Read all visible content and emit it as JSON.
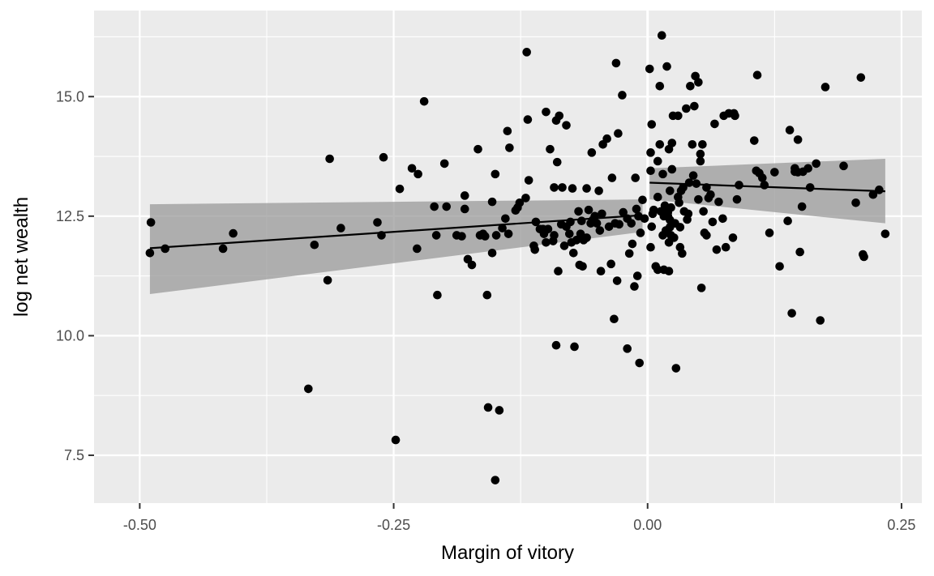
{
  "chart_data": {
    "type": "scatter",
    "title": "",
    "xlabel": "Margin of vitory",
    "ylabel": "log net wealth",
    "xlim": [
      -0.545,
      0.27
    ],
    "ylim": [
      6.5,
      16.8
    ],
    "x_ticks": [
      -0.5,
      -0.25,
      0,
      0.25
    ],
    "x_tick_labels": [
      "-0.50",
      "-0.25",
      "0.00",
      "0.25"
    ],
    "x_minor_ticks": [
      -0.375,
      -0.125,
      0.125
    ],
    "y_ticks": [
      7.5,
      10,
      12.5,
      15
    ],
    "y_tick_labels": [
      "7.5",
      "10.0",
      "12.5",
      "15.0"
    ],
    "y_minor_ticks": [
      8.75,
      11.25,
      13.75,
      16.25
    ],
    "grid": true,
    "cutoff_x": 0,
    "colors": {
      "panel": "#ebebeb",
      "grid": "#ffffff",
      "points": "#000000",
      "ribbon": "#999999",
      "fit_line": "#000000",
      "tick_label": "#4d4d4d"
    },
    "fits": [
      {
        "x": [
          -0.49,
          -0.005
        ],
        "y": [
          11.83,
          12.52
        ],
        "ribbon_lower": [
          10.87,
          12.17
        ],
        "ribbon_upper": [
          12.75,
          12.85
        ]
      },
      {
        "x": [
          0.002,
          0.234
        ],
        "y": [
          13.2,
          13.02
        ],
        "ribbon_lower": [
          12.85,
          12.35
        ],
        "ribbon_upper": [
          13.5,
          13.7
        ]
      }
    ],
    "points": [
      [
        -0.49,
        11.73
      ],
      [
        -0.489,
        12.37
      ],
      [
        -0.475,
        11.82
      ],
      [
        -0.418,
        11.82
      ],
      [
        -0.408,
        12.14
      ],
      [
        -0.334,
        8.89
      ],
      [
        -0.328,
        11.9
      ],
      [
        -0.315,
        11.16
      ],
      [
        -0.313,
        13.7
      ],
      [
        -0.302,
        12.25
      ],
      [
        -0.266,
        12.37
      ],
      [
        -0.262,
        12.1
      ],
      [
        -0.26,
        13.73
      ],
      [
        -0.248,
        7.82
      ],
      [
        -0.244,
        13.07
      ],
      [
        -0.232,
        13.5
      ],
      [
        -0.227,
        11.82
      ],
      [
        -0.226,
        13.38
      ],
      [
        -0.22,
        14.9
      ],
      [
        -0.21,
        12.7
      ],
      [
        -0.208,
        12.1
      ],
      [
        -0.207,
        10.85
      ],
      [
        -0.2,
        13.6
      ],
      [
        -0.198,
        12.7
      ],
      [
        -0.188,
        12.1
      ],
      [
        -0.183,
        12.08
      ],
      [
        -0.18,
        12.65
      ],
      [
        -0.18,
        12.93
      ],
      [
        -0.177,
        11.6
      ],
      [
        -0.173,
        11.48
      ],
      [
        -0.167,
        13.9
      ],
      [
        -0.165,
        12.1
      ],
      [
        -0.162,
        12.13
      ],
      [
        -0.16,
        12.08
      ],
      [
        -0.158,
        10.85
      ],
      [
        -0.157,
        8.5
      ],
      [
        -0.153,
        11.73
      ],
      [
        -0.153,
        12.8
      ],
      [
        -0.15,
        6.98
      ],
      [
        -0.15,
        13.38
      ],
      [
        -0.149,
        12.1
      ],
      [
        -0.146,
        8.44
      ],
      [
        -0.143,
        12.25
      ],
      [
        -0.14,
        12.45
      ],
      [
        -0.138,
        14.28
      ],
      [
        -0.137,
        12.13
      ],
      [
        -0.136,
        13.93
      ],
      [
        -0.13,
        12.62
      ],
      [
        -0.128,
        12.68
      ],
      [
        -0.126,
        12.78
      ],
      [
        -0.12,
        12.88
      ],
      [
        -0.119,
        15.93
      ],
      [
        -0.118,
        14.52
      ],
      [
        -0.117,
        13.25
      ],
      [
        -0.112,
        11.88
      ],
      [
        -0.111,
        11.8
      ],
      [
        -0.11,
        12.38
      ],
      [
        -0.106,
        12.23
      ],
      [
        -0.103,
        12.23
      ],
      [
        -0.102,
        12.13
      ],
      [
        -0.1,
        11.95
      ],
      [
        -0.1,
        14.68
      ],
      [
        -0.098,
        12.23
      ],
      [
        -0.096,
        13.9
      ],
      [
        -0.093,
        11.98
      ],
      [
        -0.092,
        12.1
      ],
      [
        -0.092,
        13.1
      ],
      [
        -0.09,
        14.5
      ],
      [
        -0.09,
        9.8
      ],
      [
        -0.089,
        13.63
      ],
      [
        -0.088,
        11.35
      ],
      [
        -0.087,
        14.6
      ],
      [
        -0.085,
        12.33
      ],
      [
        -0.084,
        13.1
      ],
      [
        -0.082,
        11.88
      ],
      [
        -0.08,
        12.28
      ],
      [
        -0.08,
        14.4
      ],
      [
        -0.077,
        12.13
      ],
      [
        -0.076,
        12.38
      ],
      [
        -0.075,
        11.95
      ],
      [
        -0.074,
        13.08
      ],
      [
        -0.073,
        11.73
      ],
      [
        -0.072,
        9.77
      ],
      [
        -0.07,
        12.0
      ],
      [
        -0.068,
        12.6
      ],
      [
        -0.067,
        11.48
      ],
      [
        -0.066,
        12.13
      ],
      [
        -0.065,
        12.4
      ],
      [
        -0.064,
        11.45
      ],
      [
        -0.063,
        12.0
      ],
      [
        -0.06,
        12.05
      ],
      [
        -0.06,
        13.08
      ],
      [
        -0.058,
        12.63
      ],
      [
        -0.056,
        12.35
      ],
      [
        -0.055,
        13.83
      ],
      [
        -0.054,
        12.42
      ],
      [
        -0.052,
        12.5
      ],
      [
        -0.05,
        12.35
      ],
      [
        -0.048,
        13.03
      ],
      [
        -0.047,
        12.2
      ],
      [
        -0.046,
        11.35
      ],
      [
        -0.045,
        12.55
      ],
      [
        -0.044,
        14.0
      ],
      [
        -0.04,
        14.12
      ],
      [
        -0.038,
        12.28
      ],
      [
        -0.036,
        11.5
      ],
      [
        -0.035,
        13.3
      ],
      [
        -0.033,
        10.35
      ],
      [
        -0.032,
        12.35
      ],
      [
        -0.031,
        15.7
      ],
      [
        -0.03,
        11.15
      ],
      [
        -0.029,
        14.23
      ],
      [
        -0.028,
        12.33
      ],
      [
        -0.025,
        15.03
      ],
      [
        -0.024,
        12.58
      ],
      [
        -0.02,
        12.45
      ],
      [
        -0.02,
        9.73
      ],
      [
        -0.018,
        11.72
      ],
      [
        -0.016,
        12.35
      ],
      [
        -0.015,
        11.92
      ],
      [
        -0.013,
        11.03
      ],
      [
        -0.012,
        13.3
      ],
      [
        -0.011,
        12.65
      ],
      [
        -0.01,
        11.25
      ],
      [
        -0.009,
        12.5
      ],
      [
        -0.008,
        9.43
      ],
      [
        -0.007,
        12.15
      ],
      [
        -0.005,
        12.84
      ],
      [
        -0.003,
        12.45
      ],
      [
        0.002,
        15.58
      ],
      [
        0.003,
        13.83
      ],
      [
        0.003,
        11.85
      ],
      [
        0.003,
        13.45
      ],
      [
        0.004,
        14.42
      ],
      [
        0.004,
        12.28
      ],
      [
        0.005,
        12.55
      ],
      [
        0.006,
        12.63
      ],
      [
        0.008,
        11.45
      ],
      [
        0.01,
        11.38
      ],
      [
        0.01,
        13.65
      ],
      [
        0.01,
        12.9
      ],
      [
        0.012,
        15.22
      ],
      [
        0.012,
        14.0
      ],
      [
        0.013,
        12.6
      ],
      [
        0.014,
        16.28
      ],
      [
        0.015,
        12.1
      ],
      [
        0.015,
        13.38
      ],
      [
        0.016,
        12.5
      ],
      [
        0.016,
        11.38
      ],
      [
        0.017,
        12.72
      ],
      [
        0.018,
        12.63
      ],
      [
        0.018,
        12.2
      ],
      [
        0.019,
        15.63
      ],
      [
        0.02,
        12.58
      ],
      [
        0.02,
        12.5
      ],
      [
        0.021,
        13.9
      ],
      [
        0.021,
        11.95
      ],
      [
        0.021,
        11.35
      ],
      [
        0.022,
        12.27
      ],
      [
        0.022,
        12.42
      ],
      [
        0.022,
        13.03
      ],
      [
        0.023,
        12.68
      ],
      [
        0.023,
        12.1
      ],
      [
        0.024,
        14.03
      ],
      [
        0.024,
        13.48
      ],
      [
        0.025,
        14.6
      ],
      [
        0.026,
        12.05
      ],
      [
        0.027,
        12.35
      ],
      [
        0.028,
        9.32
      ],
      [
        0.03,
        12.9
      ],
      [
        0.03,
        14.6
      ],
      [
        0.031,
        12.78
      ],
      [
        0.032,
        12.27
      ],
      [
        0.032,
        11.85
      ],
      [
        0.033,
        13.03
      ],
      [
        0.034,
        11.72
      ],
      [
        0.035,
        13.1
      ],
      [
        0.036,
        12.6
      ],
      [
        0.038,
        14.75
      ],
      [
        0.039,
        12.43
      ],
      [
        0.04,
        12.55
      ],
      [
        0.041,
        13.2
      ],
      [
        0.042,
        15.22
      ],
      [
        0.044,
        14.0
      ],
      [
        0.045,
        13.35
      ],
      [
        0.046,
        14.8
      ],
      [
        0.047,
        15.43
      ],
      [
        0.048,
        13.18
      ],
      [
        0.05,
        12.85
      ],
      [
        0.05,
        15.3
      ],
      [
        0.052,
        13.8
      ],
      [
        0.052,
        13.65
      ],
      [
        0.053,
        11.0
      ],
      [
        0.054,
        14.0
      ],
      [
        0.055,
        12.6
      ],
      [
        0.056,
        12.15
      ],
      [
        0.058,
        13.1
      ],
      [
        0.058,
        12.1
      ],
      [
        0.06,
        12.88
      ],
      [
        0.062,
        12.95
      ],
      [
        0.064,
        12.38
      ],
      [
        0.066,
        14.43
      ],
      [
        0.068,
        11.8
      ],
      [
        0.07,
        12.8
      ],
      [
        0.074,
        12.45
      ],
      [
        0.075,
        14.6
      ],
      [
        0.077,
        11.85
      ],
      [
        0.08,
        14.65
      ],
      [
        0.084,
        12.05
      ],
      [
        0.085,
        14.65
      ],
      [
        0.086,
        14.6
      ],
      [
        0.088,
        12.85
      ],
      [
        0.09,
        13.15
      ],
      [
        0.105,
        14.08
      ],
      [
        0.107,
        13.45
      ],
      [
        0.108,
        15.45
      ],
      [
        0.11,
        13.4
      ],
      [
        0.113,
        13.3
      ],
      [
        0.115,
        13.15
      ],
      [
        0.12,
        12.15
      ],
      [
        0.125,
        13.42
      ],
      [
        0.13,
        11.45
      ],
      [
        0.138,
        12.4
      ],
      [
        0.14,
        14.3
      ],
      [
        0.142,
        10.47
      ],
      [
        0.145,
        13.5
      ],
      [
        0.148,
        13.42
      ],
      [
        0.15,
        11.75
      ],
      [
        0.152,
        12.7
      ],
      [
        0.153,
        13.43
      ],
      [
        0.158,
        13.5
      ],
      [
        0.16,
        13.1
      ],
      [
        0.166,
        13.6
      ],
      [
        0.17,
        10.32
      ],
      [
        0.175,
        15.2
      ],
      [
        0.193,
        13.55
      ],
      [
        0.205,
        12.78
      ],
      [
        0.21,
        15.4
      ],
      [
        0.212,
        11.7
      ],
      [
        0.213,
        11.65
      ],
      [
        0.222,
        12.95
      ],
      [
        0.228,
        13.05
      ],
      [
        0.234,
        12.13
      ],
      [
        0.148,
        14.1
      ],
      [
        0.145,
        13.43
      ]
    ]
  }
}
